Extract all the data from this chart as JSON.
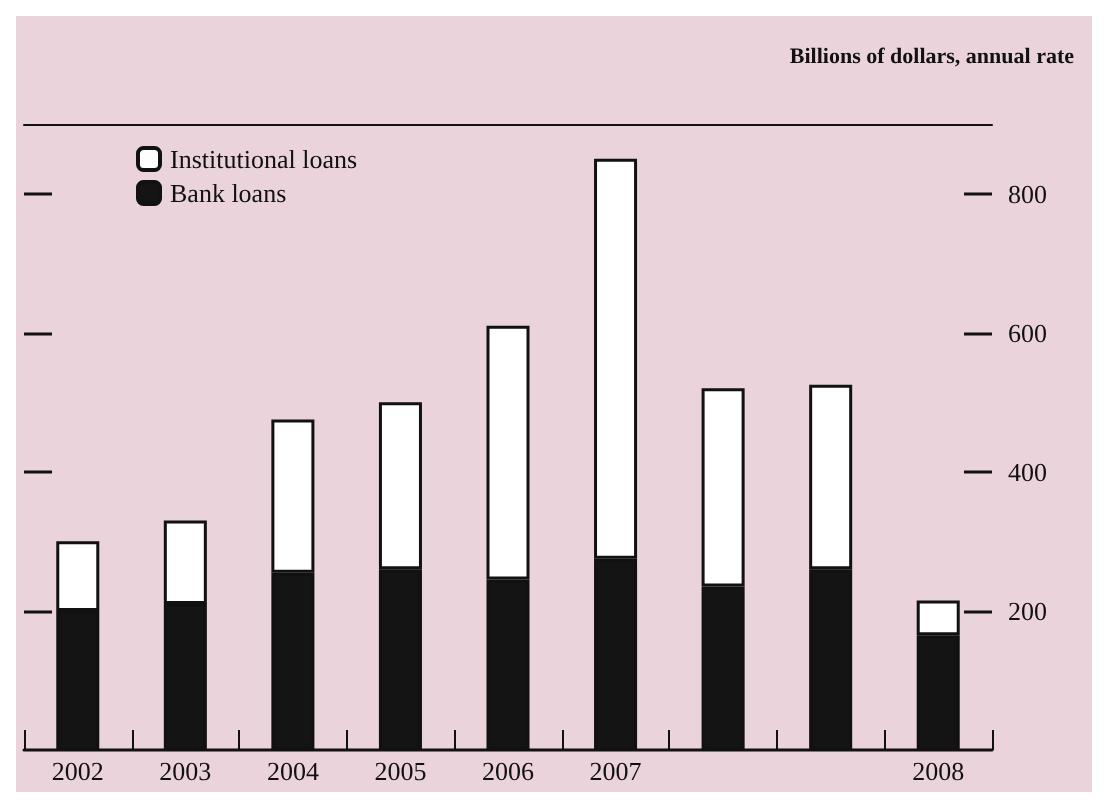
{
  "chart_data": {
    "type": "bar",
    "stacked": true,
    "ylabel": "Billions of dollars, annual rate",
    "categories": [
      "2002",
      "2003",
      "2004",
      "2005",
      "2006",
      "2007",
      null,
      null,
      "2008"
    ],
    "series": [
      {
        "name": "Bank loans",
        "color": "#141414",
        "values": [
          200,
          210,
          255,
          260,
          245,
          275,
          235,
          260,
          165
        ]
      },
      {
        "name": "Institutional loans",
        "color": "#ffffff",
        "values": [
          100,
          120,
          220,
          240,
          365,
          575,
          285,
          265,
          50
        ]
      }
    ],
    "ylim": [
      0,
      900
    ],
    "yticks": [
      200,
      400,
      600,
      800
    ],
    "grid": false,
    "legend": "top left"
  }
}
